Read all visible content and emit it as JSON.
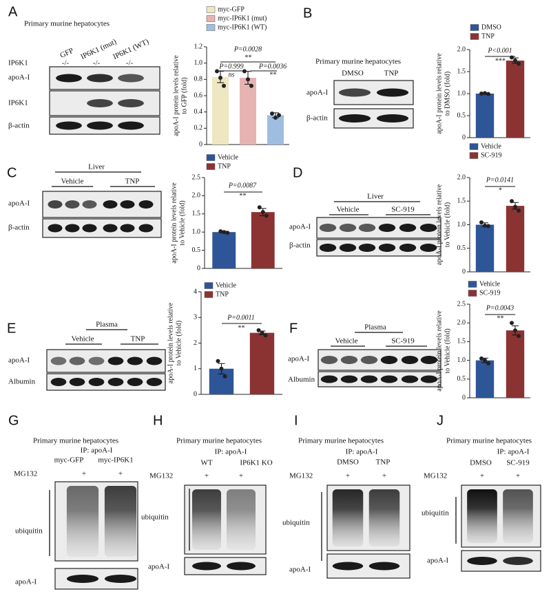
{
  "chart_data": [
    {
      "type": "bar",
      "ylabel": [
        "apoA-I protein levels relative",
        "to GFP (fold)"
      ],
      "categories": [
        null
      ],
      "series": [
        {
          "name": "myc-GFP",
          "color": "#efe6c2",
          "values": [
            0.83
          ],
          "errors": [
            0.07
          ],
          "points": [
            [
              0.9,
              0.82,
              0.72
            ]
          ]
        },
        {
          "name": "myc-IP6K1 (mut)",
          "color": "#e6b3b3",
          "values": [
            0.82
          ],
          "errors": [
            0.08
          ],
          "points": [
            [
              0.9,
              0.8,
              0.72
            ]
          ]
        },
        {
          "name": "myc-IP6K1 (WT)",
          "color": "#9fbde0",
          "values": [
            0.36
          ],
          "errors": [
            0.03
          ],
          "points": [
            [
              0.38,
              0.33,
              0.36
            ]
          ]
        }
      ],
      "ylim": [
        0,
        1.2
      ],
      "yticks": [
        0,
        0.2,
        0.4,
        0.6,
        0.8,
        {
          "value": 1,
          "label": "1.0"
        },
        1.2
      ],
      "annotations": [
        "P=0.0028",
        "**",
        "P=0.999",
        "ns",
        "P=0.0036",
        "**"
      ]
    },
    {
      "type": "bar",
      "ylabel": [
        "apoA-I protein levels relative",
        "to DMSO (fold)"
      ],
      "categories": [
        null
      ],
      "series": [
        {
          "name": "DMSO",
          "color": "#2e5597",
          "values": [
            1.0
          ],
          "errors": [
            0.01
          ],
          "points": [
            [
              1.0,
              1.01,
              0.99
            ]
          ]
        },
        {
          "name": "TNP",
          "color": "#8b3333",
          "values": [
            1.75
          ],
          "errors": [
            0.06
          ],
          "points": [
            [
              1.82,
              1.75,
              1.68
            ]
          ]
        }
      ],
      "ylim": [
        0,
        2
      ],
      "yticks": [
        0,
        0.5,
        {
          "value": 1,
          "label": "1.0"
        },
        1.5,
        {
          "value": 2,
          "label": "2.0"
        }
      ],
      "annotations": [
        "P<0.001",
        "***"
      ]
    },
    {
      "type": "bar",
      "ylabel": [
        "apoA-I protein levels relative",
        "to Vehicle (fold)"
      ],
      "categories": [
        null
      ],
      "series": [
        {
          "name": "Vehicle",
          "color": "#2e5597",
          "values": [
            1.0
          ],
          "errors": [
            0.02
          ],
          "points": [
            [
              1.02,
              1.0,
              0.98
            ]
          ]
        },
        {
          "name": "TNP",
          "color": "#8b3333",
          "values": [
            1.55
          ],
          "errors": [
            0.1
          ],
          "points": [
            [
              1.68,
              1.55,
              1.45
            ]
          ]
        }
      ],
      "ylim": [
        0,
        2.5
      ],
      "yticks": [
        0,
        0.5,
        {
          "value": 1,
          "label": "1.0"
        },
        1.5,
        {
          "value": 2,
          "label": "2.0"
        },
        2.5
      ],
      "annotations": [
        "P=0.0087",
        "**"
      ]
    },
    {
      "type": "bar",
      "ylabel": [
        "apoA-I protein levels relative",
        "to Vehicle (fold)"
      ],
      "categories": [
        null
      ],
      "series": [
        {
          "name": "Vehicle",
          "color": "#2e5597",
          "values": [
            1.0
          ],
          "errors": [
            0.04
          ],
          "points": [
            [
              1.05,
              0.98,
              0.97
            ]
          ]
        },
        {
          "name": "SC-919",
          "color": "#8b3333",
          "values": [
            1.4
          ],
          "errors": [
            0.07
          ],
          "points": [
            [
              1.5,
              1.38,
              1.3
            ]
          ]
        }
      ],
      "ylim": [
        0,
        2
      ],
      "yticks": [
        0,
        0.5,
        {
          "value": 1,
          "label": "1.0"
        },
        1.5,
        {
          "value": 2,
          "label": "2.0"
        }
      ],
      "annotations": [
        "P=0.0141",
        "*"
      ]
    },
    {
      "type": "bar",
      "ylabel": [
        "apoA-I protein levels relative",
        "to Vehicle (fold)"
      ],
      "categories": [
        null
      ],
      "series": [
        {
          "name": "Vehicle",
          "color": "#2e5597",
          "values": [
            1.0
          ],
          "errors": [
            0.2
          ],
          "points": [
            [
              1.3,
              1.0,
              0.7
            ]
          ]
        },
        {
          "name": "TNP",
          "color": "#8b3333",
          "values": [
            2.4
          ],
          "errors": [
            0.07
          ],
          "points": [
            [
              2.5,
              2.4,
              2.3
            ]
          ]
        }
      ],
      "ylim": [
        0,
        4
      ],
      "yticks": [
        0,
        1,
        2,
        3,
        4
      ],
      "annotations": [
        "P=0.0011",
        "**"
      ]
    },
    {
      "type": "bar",
      "ylabel": [
        "apoA-I protein levels relative",
        "to Vehicle (fold)"
      ],
      "categories": [
        null
      ],
      "series": [
        {
          "name": "Vehicle",
          "color": "#2e5597",
          "values": [
            1.0
          ],
          "errors": [
            0.06
          ],
          "points": [
            [
              1.05,
              1.0,
              0.92
            ]
          ]
        },
        {
          "name": "SC-919",
          "color": "#8b3333",
          "values": [
            1.8
          ],
          "errors": [
            0.12
          ],
          "points": [
            [
              2.0,
              1.8,
              1.65
            ]
          ]
        }
      ],
      "ylim": [
        0,
        2.5
      ],
      "yticks": [
        0,
        0.5,
        {
          "value": 1,
          "label": "1.0"
        },
        1.5,
        {
          "value": 2,
          "label": "2.0"
        },
        2.5
      ],
      "annotations": [
        "P=0.0043",
        "**"
      ]
    }
  ],
  "blots": [
    {
      "letter": "A",
      "labels": [
        "Primary murine hepatocytes",
        "GFP",
        "IP6K1 (mut)",
        "IP6K1 (WT)",
        "IP6K1",
        "-/-",
        "-/-",
        "-/-",
        "apoA-I",
        "IP6K1",
        "β-actin"
      ]
    },
    {
      "letter": "B",
      "labels": [
        "Primary murine hepatocytes",
        "DMSO",
        "TNP",
        "apoA-I",
        "β-actin"
      ]
    },
    {
      "letter": "C",
      "labels": [
        "Liver",
        "Vehicle",
        "TNP",
        "apoA-I",
        "β-actin"
      ]
    },
    {
      "letter": "D",
      "labels": [
        "Liver",
        "Vehicle",
        "SC-919",
        "apoA-I",
        "β-actin"
      ]
    },
    {
      "letter": "E",
      "labels": [
        "Plasma",
        "Vehicle",
        "TNP",
        "apoA-I",
        "Albumin"
      ]
    },
    {
      "letter": "F",
      "labels": [
        "Plasma",
        "Vehicle",
        "SC-919",
        "apoA-I",
        "Albumin"
      ]
    },
    {
      "letter": "G",
      "labels": [
        "Primary murine hepatocytes",
        "IP: apoA-I",
        "myc-GFP",
        "myc-IP6K1",
        "MG132",
        "+",
        "+",
        "ubiquitin",
        "apoA-I"
      ]
    },
    {
      "letter": "H",
      "labels": [
        "Primary murine hepatocytes",
        "IP: apoA-I",
        "WT",
        "IP6K1 KO",
        "MG132",
        "+",
        "+",
        "ubiquitin",
        "apoA-I"
      ]
    },
    {
      "letter": "I",
      "labels": [
        "Primary murine hepatocytes",
        "IP: apoA-I",
        "DMSO",
        "TNP",
        "MG132",
        "+",
        "+",
        "ubiquitin",
        "apoA-I"
      ]
    },
    {
      "letter": "J",
      "labels": [
        "Primary murine hepatocytes",
        "IP: apoA-I",
        "DMSO",
        "SC-919",
        "MG132",
        "+",
        "+",
        "ubiquitin",
        "apoA-I"
      ]
    }
  ]
}
